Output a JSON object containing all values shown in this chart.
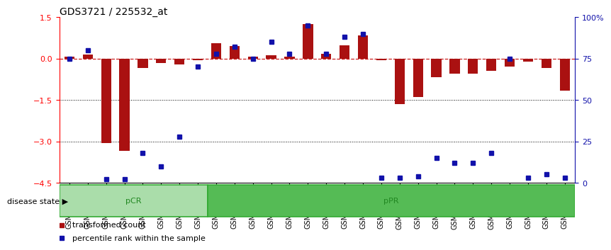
{
  "title": "GDS3721 / 225532_at",
  "samples": [
    "GSM559062",
    "GSM559063",
    "GSM559064",
    "GSM559065",
    "GSM559066",
    "GSM559067",
    "GSM559068",
    "GSM559069",
    "GSM559042",
    "GSM559043",
    "GSM559044",
    "GSM559045",
    "GSM559046",
    "GSM559047",
    "GSM559048",
    "GSM559049",
    "GSM559050",
    "GSM559051",
    "GSM559052",
    "GSM559053",
    "GSM559054",
    "GSM559055",
    "GSM559056",
    "GSM559057",
    "GSM559058",
    "GSM559059",
    "GSM559060",
    "GSM559061"
  ],
  "bar_values": [
    0.08,
    0.15,
    -3.05,
    -3.35,
    -0.35,
    -0.15,
    -0.22,
    -0.05,
    0.55,
    0.45,
    0.08,
    0.12,
    0.08,
    1.25,
    0.18,
    0.48,
    0.85,
    -0.06,
    -1.65,
    -1.38,
    -0.68,
    -0.55,
    -0.55,
    -0.45,
    -0.28,
    -0.1,
    -0.35,
    -1.15
  ],
  "percentile_values": [
    75,
    80,
    2,
    2,
    18,
    10,
    28,
    70,
    78,
    82,
    75,
    85,
    78,
    95,
    78,
    88,
    90,
    3,
    3,
    4,
    15,
    12,
    12,
    18,
    75,
    3,
    5,
    3
  ],
  "pCR_count": 8,
  "pPR_count": 20,
  "ylim_left": [
    -4.5,
    1.5
  ],
  "ylim_right": [
    0,
    100
  ],
  "yticks_left": [
    1.5,
    0.0,
    -1.5,
    -3.0,
    -4.5
  ],
  "yticks_right": [
    100,
    75,
    50,
    25,
    0
  ],
  "bar_color": "#AA1111",
  "percentile_color": "#1111AA",
  "pCR_color": "#aaddaa",
  "pPR_color": "#55bb55",
  "bg_color": "#ffffff",
  "dotted_line_color": "#000000",
  "zero_line_color": "#cc2222",
  "legend_bar_label": "transformed count",
  "legend_pct_label": "percentile rank within the sample",
  "disease_state_label": "disease state",
  "pCR_label": "pCR",
  "pPR_label": "pPR",
  "title_fontsize": 10,
  "tick_label_fontsize": 7,
  "legend_fontsize": 8,
  "disease_fontsize": 8
}
